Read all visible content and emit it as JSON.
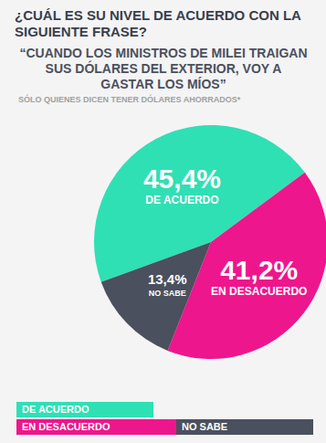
{
  "chart_data": {
    "type": "pie",
    "title": "¿CUÁL ES SU NIVEL DE ACUERDO CON LA SIGUIENTE FRASE?",
    "subtitle": "“CUANDO LOS MINISTROS DE MILEI TRAIGAN SUS DÓLARES DEL EXTERIOR, VOY A GASTAR LOS MÍOS”",
    "annotations": [
      "SÓLO QUIENES DICEN TENER DÓLARES AHORRADOS*"
    ],
    "categories": [
      "DE ACUERDO",
      "EN DESACUERDO",
      "NO SABE"
    ],
    "values": [
      45.4,
      41.2,
      13.4
    ],
    "value_labels": [
      "45,4%",
      "41,2%",
      "13,4%"
    ],
    "colors": [
      "#2fe0b4",
      "#ee168c",
      "#4b505e"
    ],
    "legend": "bottom",
    "data_labels": true
  }
}
